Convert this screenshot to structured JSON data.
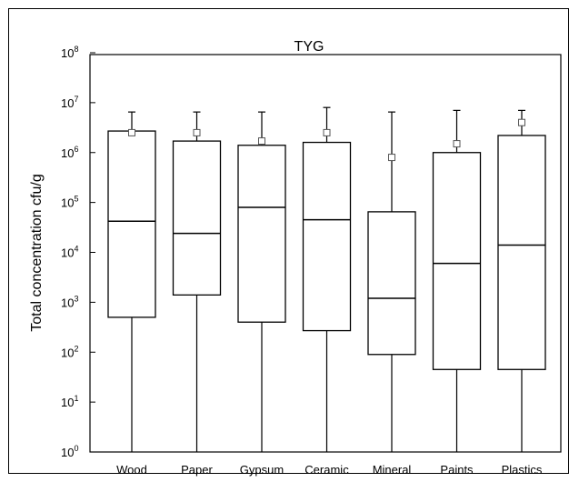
{
  "chart_data": {
    "type": "box",
    "title": "TYG",
    "xlabel": "",
    "ylabel": "Total concentration cfu/g",
    "y_scale": "log10",
    "ylim": [
      1,
      100000000
    ],
    "y_ticks": [
      {
        "base": "10",
        "exp": "0"
      },
      {
        "base": "10",
        "exp": "1"
      },
      {
        "base": "10",
        "exp": "2"
      },
      {
        "base": "10",
        "exp": "3"
      },
      {
        "base": "10",
        "exp": "4"
      },
      {
        "base": "10",
        "exp": "5"
      },
      {
        "base": "10",
        "exp": "6"
      },
      {
        "base": "10",
        "exp": "7"
      },
      {
        "base": "10",
        "exp": "8"
      }
    ],
    "categories": [
      "Wood",
      "Paper",
      "Gypsum",
      "Ceramic",
      "Mineral",
      "Paints",
      "Plastics"
    ],
    "boxes": [
      {
        "category": "Wood",
        "whisker_low": 1,
        "q1": 500,
        "median": 42000,
        "q3": 2700000,
        "whisker_high": 6500000,
        "mean": 2500000
      },
      {
        "category": "Paper",
        "whisker_low": 1,
        "q1": 1400,
        "median": 24000,
        "q3": 1700000,
        "whisker_high": 6500000,
        "mean": 2500000
      },
      {
        "category": "Gypsum",
        "whisker_low": 1,
        "q1": 400,
        "median": 80000,
        "q3": 1400000,
        "whisker_high": 6500000,
        "mean": 1700000
      },
      {
        "category": "Ceramic",
        "whisker_low": 1,
        "q1": 270,
        "median": 45000,
        "q3": 1600000,
        "whisker_high": 8000000,
        "mean": 2500000
      },
      {
        "category": "Mineral",
        "whisker_low": 1,
        "q1": 90,
        "median": 1200,
        "q3": 65000,
        "whisker_high": 6500000,
        "mean": 800000
      },
      {
        "category": "Paints",
        "whisker_low": 1,
        "q1": 45,
        "median": 6000,
        "q3": 1000000,
        "whisker_high": 7000000,
        "mean": 1500000
      },
      {
        "category": "Plastics",
        "whisker_low": 1,
        "q1": 45,
        "median": 14000,
        "q3": 2200000,
        "whisker_high": 7000000,
        "mean": 4000000
      }
    ],
    "legend": false,
    "grid": false,
    "colors": {
      "box_stroke": "#000000",
      "background": "#ffffff"
    }
  }
}
